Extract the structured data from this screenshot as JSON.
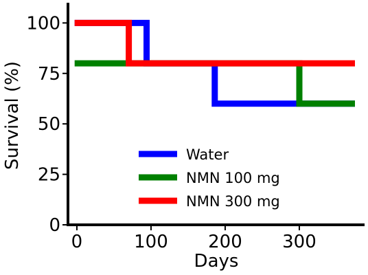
{
  "chart_data": {
    "type": "line",
    "step": true,
    "xlabel": "Days",
    "ylabel": "Survival (%)",
    "xlim": [
      -12,
      388
    ],
    "ylim": [
      0,
      110
    ],
    "xticks": [
      0,
      100,
      200,
      300
    ],
    "yticks": [
      0,
      25,
      50,
      75,
      100
    ],
    "grid": false,
    "legend_position": "lower-center",
    "series": [
      {
        "name": "Water",
        "color": "#0000ff",
        "x": [
          -3,
          94,
          94,
          186,
          186,
          375
        ],
        "y": [
          100,
          100,
          80,
          80,
          60,
          60
        ]
      },
      {
        "name": "NMN 100 mg",
        "color": "#008000",
        "x": [
          -3,
          300,
          300,
          375
        ],
        "y": [
          80,
          80,
          60,
          60
        ]
      },
      {
        "name": "NMN 300 mg",
        "color": "#ff0000",
        "x": [
          -3,
          70,
          70,
          375
        ],
        "y": [
          100,
          100,
          80,
          80
        ]
      }
    ]
  }
}
